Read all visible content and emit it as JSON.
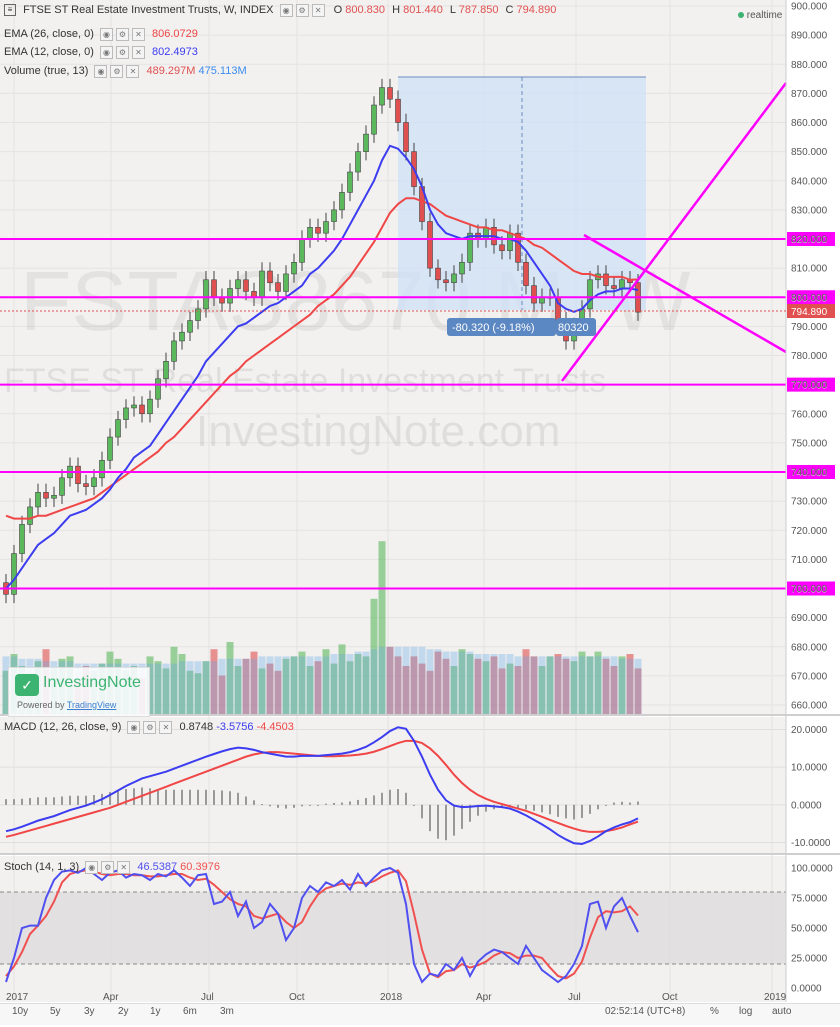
{
  "header": {
    "title": "FTSE ST Real Estate Investment Trusts, W, INDEX",
    "o_label": "O",
    "o": "800.830",
    "h_label": "H",
    "h": "801.440",
    "l_label": "L",
    "l": "787.850",
    "c_label": "C",
    "c": "794.890",
    "realtime": "realtime"
  },
  "indicators": {
    "ema26_label": "EMA (26, close, 0)",
    "ema26_value": "806.0729",
    "ema12_label": "EMA (12, close, 0)",
    "ema12_value": "802.4973",
    "volume_label": "Volume (true, 13)",
    "volume_v1": "489.297M",
    "volume_v2": "475.113M",
    "macd_label": "MACD (12, 26, close, 9)",
    "macd_v1": "0.8748",
    "macd_v2": "-3.5756",
    "macd_v3": "-4.4503",
    "stoch_label": "Stoch (14, 1, 3)",
    "stoch_v1": "46.5387",
    "stoch_v2": "60.3976"
  },
  "watermark": {
    "line1": "FSTAS8670.M, W",
    "line2": "FTSE ST Real Estate Investment Trusts",
    "line3": "InvestingNote.com"
  },
  "logo": {
    "name": "InvestingNote",
    "powered": "Powered by",
    "powered_link": "TradingView"
  },
  "measure": {
    "label": "-80.320 (-9.18%)",
    "label2": "80320"
  },
  "price_tag": "794.890",
  "colors": {
    "up": "#5cb85c",
    "down": "#e05050",
    "ema12": "#3c3cf0",
    "ema26": "#f04646",
    "hline": "#ff00ff",
    "stoch_k": "#5050f0",
    "stoch_d": "#f05050",
    "macd_hist": "#999999",
    "measure_fill": "#d6e4f6",
    "measure_label_bg": "#5b87c2"
  },
  "timeframes": [
    "10y",
    "5y",
    "3y",
    "2y",
    "1y",
    "6m",
    "3m"
  ],
  "bottom_right": {
    "time": "02:52:14 (UTC+8)",
    "pct": "%",
    "log": "log",
    "auto": "auto"
  },
  "chart_data": [
    {
      "type": "candlestick",
      "title": "FTSE ST Real Estate Investment Trusts, W, INDEX",
      "timeframe": "W",
      "x_ticks": [
        "2017",
        "Apr",
        "Jul",
        "Oct",
        "2018",
        "Apr",
        "Jul",
        "Oct",
        "2019"
      ],
      "y_ticks": [
        "660.000",
        "670.000",
        "680.000",
        "690.000",
        "700.000",
        "710.000",
        "720.000",
        "730.000",
        "740.000",
        "750.000",
        "760.000",
        "770.000",
        "780.000",
        "790.000",
        "800.000",
        "810.000",
        "820.000",
        "830.000",
        "840.000",
        "850.000",
        "860.000",
        "870.000",
        "880.000",
        "890.000",
        "900.000"
      ],
      "ylim": [
        655,
        900
      ],
      "horizontal_levels": [
        {
          "value": 820,
          "label": "820.000"
        },
        {
          "value": 800,
          "label": "800.000"
        },
        {
          "value": 770,
          "label": "770.000"
        },
        {
          "value": 740,
          "label": "740.000"
        },
        {
          "value": 700,
          "label": "700.000"
        }
      ],
      "last_price": 794.89,
      "closes": [
        698,
        712,
        722,
        728,
        733,
        731,
        732,
        738,
        742,
        736,
        735,
        738,
        744,
        752,
        758,
        762,
        763,
        760,
        765,
        772,
        778,
        785,
        788,
        792,
        796,
        806,
        800,
        798,
        803,
        806,
        802,
        800,
        809,
        805,
        802,
        808,
        812,
        820,
        824,
        822,
        826,
        830,
        836,
        843,
        850,
        856,
        866,
        872,
        868,
        860,
        850,
        838,
        826,
        810,
        806,
        805,
        808,
        812,
        822,
        820,
        824,
        818,
        816,
        822,
        812,
        804,
        798,
        800,
        800,
        792,
        785,
        790,
        796,
        806,
        808,
        804,
        803,
        806,
        805,
        794.89
      ],
      "ema12": [
        700,
        703,
        707,
        711,
        715,
        717,
        719,
        722,
        725,
        726,
        727,
        729,
        731,
        734,
        738,
        741,
        745,
        747,
        749,
        753,
        757,
        761,
        765,
        769,
        773,
        778,
        781,
        784,
        787,
        790,
        791,
        793,
        795,
        797,
        798,
        800,
        802,
        804,
        808,
        810,
        813,
        816,
        820,
        825,
        830,
        835,
        840,
        847,
        852,
        851,
        848,
        844,
        838,
        830,
        825,
        822,
        821,
        820,
        821,
        821,
        821,
        821,
        820,
        820,
        819,
        816,
        812,
        808,
        804,
        798,
        796,
        795,
        796,
        799,
        801,
        802,
        802,
        803,
        803,
        802.5
      ],
      "ema26": [
        725,
        724,
        724,
        724,
        725,
        725,
        726,
        727,
        728,
        729,
        730,
        731,
        733,
        735,
        737,
        739,
        741,
        743,
        745,
        747,
        750,
        752,
        755,
        758,
        761,
        764,
        767,
        770,
        773,
        775,
        778,
        780,
        782,
        784,
        786,
        788,
        790,
        792,
        794,
        797,
        799,
        801,
        804,
        807,
        811,
        815,
        819,
        824,
        829,
        832,
        834,
        834,
        833,
        832,
        830,
        828,
        827,
        826,
        825,
        824,
        824,
        823,
        823,
        822,
        821,
        820,
        818,
        817,
        815,
        813,
        811,
        809,
        808,
        808,
        807,
        807,
        807,
        807,
        806,
        806.1
      ],
      "volume": [
        18,
        25,
        20,
        17,
        22,
        27,
        19,
        23,
        24,
        14,
        20,
        18,
        21,
        26,
        23,
        18,
        20,
        15,
        24,
        22,
        19,
        28,
        25,
        18,
        17,
        22,
        27,
        16,
        30,
        20,
        23,
        26,
        19,
        21,
        18,
        23,
        24,
        26,
        20,
        22,
        27,
        21,
        29,
        22,
        25,
        24,
        48,
        72,
        28,
        24,
        20,
        24,
        21,
        18,
        26,
        23,
        20,
        27,
        25,
        23,
        22,
        24,
        19,
        21,
        20,
        27,
        24,
        20,
        24,
        25,
        23,
        22,
        26,
        24,
        26,
        23,
        20,
        24,
        25,
        19
      ],
      "volume_ma": [
        24,
        24,
        23,
        23,
        23,
        22,
        22,
        22,
        22,
        21,
        21,
        21,
        21,
        21,
        21,
        21,
        21,
        21,
        21,
        21,
        21,
        21,
        22,
        22,
        22,
        22,
        22,
        23,
        23,
        23,
        23,
        23,
        24,
        24,
        24,
        24,
        24,
        24,
        24,
        24,
        24,
        25,
        25,
        25,
        26,
        26,
        27,
        28,
        28,
        28,
        28,
        28,
        28,
        27,
        27,
        26,
        26,
        26,
        26,
        25,
        25,
        25,
        25,
        25,
        24,
        24,
        24,
        24,
        24,
        24,
        24,
        24,
        24,
        24,
        24,
        24,
        24,
        23,
        23,
        23
      ]
    },
    {
      "type": "line",
      "title": "MACD (12, 26, close, 9)",
      "y_ticks": [
        "20.0000",
        "10.0000",
        "0.0000",
        "-10.0000"
      ],
      "ylim": [
        -12,
        22
      ],
      "macd": [
        -7,
        -6.5,
        -5.8,
        -5,
        -4.2,
        -3.6,
        -3,
        -2.2,
        -1.4,
        -0.8,
        -0.2,
        0.6,
        1.5,
        2.6,
        3.8,
        5,
        6,
        7,
        7.6,
        8.2,
        8.8,
        9.6,
        10.4,
        11.2,
        12,
        12.8,
        13.5,
        14.2,
        14.8,
        15.2,
        15,
        14.6,
        14,
        13.6,
        13.2,
        12.8,
        12.8,
        13,
        13,
        13,
        13.2,
        13.4,
        13.6,
        14,
        14.6,
        15.4,
        16.6,
        18,
        19.6,
        20.6,
        20.2,
        17,
        12.8,
        8,
        4,
        1.2,
        -0.2,
        -0.6,
        -0.5,
        -0.3,
        -0.2,
        -0.4,
        -0.6,
        -1,
        -1.8,
        -2.8,
        -4,
        -5.2,
        -6.5,
        -8,
        -9.2,
        -10.2,
        -10.4,
        -9.6,
        -8.4,
        -7,
        -6,
        -5.2,
        -4.6,
        -3.6
      ],
      "signal": [
        -8.5,
        -8,
        -7.4,
        -6.8,
        -6.2,
        -5.6,
        -5,
        -4.4,
        -3.8,
        -3.2,
        -2.6,
        -2,
        -1.4,
        -0.8,
        0,
        0.8,
        1.6,
        2.4,
        3.2,
        4,
        4.8,
        5.6,
        6.4,
        7.2,
        8,
        8.8,
        9.6,
        10.4,
        11.2,
        12,
        12.8,
        13.4,
        13.8,
        14,
        14,
        13.8,
        13.6,
        13.4,
        13.2,
        13,
        12.9,
        12.9,
        13,
        13.1,
        13.3,
        13.6,
        14.1,
        14.8,
        15.6,
        16.4,
        17,
        17,
        16.4,
        15,
        13,
        10.6,
        8,
        5.8,
        4,
        2.6,
        1.6,
        0.8,
        0.2,
        -0.4,
        -1,
        -1.6,
        -2.4,
        -3.2,
        -4,
        -4.8,
        -5.6,
        -6.3,
        -6.9,
        -7.2,
        -7.2,
        -7,
        -6.6,
        -6,
        -5.2,
        -4.45
      ],
      "histogram": [
        1.5,
        1.5,
        1.6,
        1.8,
        2,
        2,
        2,
        2.2,
        2.4,
        2.4,
        2.4,
        2.6,
        2.9,
        3.4,
        3.8,
        4.2,
        4.4,
        4.6,
        4.4,
        4.2,
        4,
        4,
        4,
        4,
        4,
        4,
        3.9,
        3.8,
        3.6,
        3.2,
        2.2,
        1.2,
        0.2,
        -0.4,
        -0.8,
        -1,
        -0.8,
        -0.4,
        -0.2,
        0,
        0.3,
        0.5,
        0.6,
        0.9,
        1.3,
        1.8,
        2.5,
        3.2,
        4,
        4.2,
        3.2,
        0,
        -3.6,
        -7,
        -9,
        -9.4,
        -8.2,
        -6.4,
        -4.5,
        -2.9,
        -1.8,
        -1.2,
        -0.8,
        -0.6,
        -0.8,
        -1.2,
        -1.6,
        -2,
        -2.5,
        -3.2,
        -3.6,
        -3.9,
        -3.5,
        -2.4,
        -1.2,
        0,
        0.6,
        0.8,
        0.6,
        0.87
      ]
    },
    {
      "type": "line",
      "title": "Stoch (14, 1, 3)",
      "y_ticks": [
        "100.0000",
        "75.0000",
        "50.0000",
        "25.0000",
        "0.0000"
      ],
      "ylim": [
        -5,
        105
      ],
      "k": [
        5,
        25,
        50,
        52,
        52,
        75,
        90,
        97,
        98,
        96,
        100,
        95,
        90,
        96,
        98,
        92,
        95,
        94,
        90,
        95,
        93,
        98,
        92,
        85,
        94,
        95,
        70,
        72,
        80,
        60,
        72,
        50,
        55,
        70,
        62,
        40,
        50,
        75,
        85,
        80,
        88,
        85,
        90,
        82,
        95,
        85,
        92,
        98,
        100,
        96,
        70,
        20,
        5,
        12,
        10,
        20,
        15,
        25,
        10,
        22,
        28,
        32,
        30,
        25,
        20,
        35,
        25,
        15,
        10,
        5,
        10,
        20,
        35,
        70,
        72,
        50,
        68,
        75,
        60,
        46.5
      ],
      "d": [
        10,
        18,
        30,
        45,
        52,
        60,
        72,
        88,
        95,
        97,
        98,
        97,
        95,
        94,
        95,
        95,
        94,
        94,
        93,
        93,
        94,
        95,
        95,
        92,
        90,
        91,
        86,
        80,
        74,
        70,
        68,
        60,
        58,
        60,
        62,
        55,
        50,
        55,
        68,
        78,
        83,
        85,
        87,
        86,
        88,
        87,
        89,
        93,
        96,
        98,
        89,
        62,
        32,
        12,
        9,
        14,
        15,
        20,
        17,
        19,
        22,
        27,
        30,
        29,
        25,
        27,
        27,
        25,
        17,
        10,
        8,
        12,
        22,
        42,
        59,
        64,
        63,
        64,
        68,
        60.4
      ]
    }
  ]
}
